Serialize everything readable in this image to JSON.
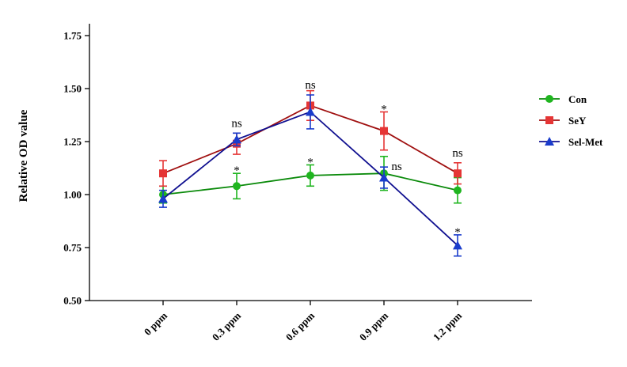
{
  "chart_data": {
    "type": "line",
    "xlabel": "",
    "ylabel": "Relative OD value",
    "categories": [
      "0 ppm",
      "0.3 ppm",
      "0.6 ppm",
      "0.9 ppm",
      "1.2 ppm"
    ],
    "ylim": [
      0.5,
      1.75
    ],
    "yticks": [
      "0.50",
      "0.75",
      "1.00",
      "1.25",
      "1.50",
      "1.75"
    ],
    "ytick_values": [
      0.5,
      0.75,
      1.0,
      1.25,
      1.5,
      1.75
    ],
    "grid": false,
    "legend_position": "right",
    "series": [
      {
        "name": "Con",
        "marker": "circle",
        "line_color": "#0a8a0a",
        "marker_color": "#1fb51f",
        "values": [
          1.0,
          1.04,
          1.09,
          1.1,
          1.02
        ],
        "errors": [
          0.04,
          0.06,
          0.05,
          0.08,
          0.06
        ],
        "annotations": [
          "",
          "*",
          "*",
          "",
          ""
        ]
      },
      {
        "name": "SeY",
        "marker": "square",
        "line_color": "#a01010",
        "marker_color": "#e53535",
        "values": [
          1.1,
          1.24,
          1.42,
          1.3,
          1.1
        ],
        "errors": [
          0.06,
          0.05,
          0.07,
          0.09,
          0.05
        ],
        "annotations": [
          "",
          "",
          "",
          "*",
          "ns"
        ]
      },
      {
        "name": "Sel-Met",
        "marker": "triangle",
        "line_color": "#101090",
        "marker_color": "#1a3ccc",
        "values": [
          0.98,
          1.26,
          1.39,
          1.08,
          0.76
        ],
        "errors": [
          0.04,
          0.03,
          0.08,
          0.05,
          0.05
        ],
        "annotations": [
          "",
          "ns",
          "ns",
          "ns",
          "*"
        ]
      }
    ]
  }
}
